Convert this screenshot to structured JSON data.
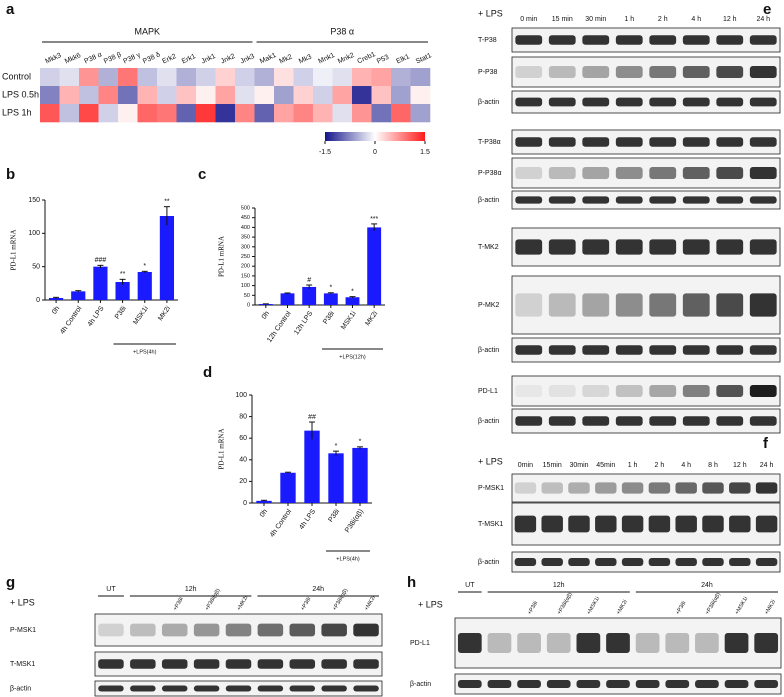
{
  "chart_data": [
    {
      "panel": "a",
      "type": "heatmap",
      "groups": [
        {
          "label": "MAPK",
          "columns": [
            "Mkk3",
            "Mkk6",
            "P38 α",
            "P38 β",
            "P38 γ",
            "P38 δ",
            "Erk2",
            "Erk1",
            "Jnk1",
            "Jnk2",
            "Jnk3"
          ]
        },
        {
          "label": "P38 α",
          "columns": [
            "Mak1",
            "Mk2",
            "Mk3",
            "Mnk1",
            "Mnk2",
            "Creb1",
            "P53",
            "Elk1",
            "Stat1"
          ]
        }
      ],
      "rows": [
        "Control",
        "LPS 0.5h",
        "LPS 1h"
      ],
      "values": [
        [
          -0.3,
          -0.2,
          0.7,
          -0.5,
          0.9,
          -0.4,
          -0.2,
          -0.5,
          -0.3,
          0.3,
          -0.3,
          -0.5,
          0.2,
          -0.3,
          -0.1,
          -0.2,
          0.5,
          0.6,
          -0.5,
          -0.6
        ],
        [
          -0.8,
          0.5,
          -0.4,
          0.8,
          -0.9,
          0.5,
          -0.3,
          0.4,
          0.1,
          0.6,
          -0.2,
          0.1,
          -0.6,
          0.3,
          -0.3,
          0.6,
          -1.3,
          0.4,
          -0.6,
          0.1
        ],
        [
          1.1,
          -0.4,
          1.2,
          -0.3,
          0.1,
          1.0,
          0.9,
          -1.0,
          1.3,
          -1.3,
          0.8,
          -1.0,
          0.6,
          0.8,
          0.5,
          -0.2,
          0.7,
          -0.9,
          1.0,
          -0.6
        ]
      ],
      "colorbar": {
        "lim": [
          -1.5,
          1.5
        ],
        "ticks": [
          -1.5,
          0,
          1.5
        ],
        "colors": [
          "#14148a",
          "#ffffff",
          "#ff1a1a"
        ]
      }
    },
    {
      "panel": "b",
      "type": "bar",
      "ylabel": "PD-L1  mRNA",
      "color": "#1a1aff",
      "categories": [
        "0h",
        "4h Control",
        "4h LPS",
        "P38i",
        "MSK1i",
        "MK2i"
      ],
      "values": [
        3,
        13,
        50,
        27,
        42,
        126
      ],
      "errors": [
        1,
        1,
        2,
        4,
        1,
        14
      ],
      "significance": [
        null,
        null,
        "###",
        "**",
        "*",
        "**"
      ],
      "bracket": {
        "label": "+LPS(4h)",
        "first": "P38i",
        "last": "MK2i"
      },
      "ylim": [
        0,
        150
      ],
      "yticks": [
        0,
        50,
        100,
        150
      ]
    },
    {
      "panel": "c",
      "type": "bar",
      "ylabel": "PD-L1  mRNA",
      "color": "#1a1aff",
      "categories": [
        "0h",
        "12h Control",
        "12h LPS",
        "P38i",
        "MSK1i",
        "MK2i"
      ],
      "values": [
        5,
        60,
        93,
        60,
        40,
        400
      ],
      "errors": [
        1,
        2,
        10,
        3,
        3,
        18
      ],
      "significance": [
        null,
        null,
        "#",
        "*",
        "*",
        "***"
      ],
      "bracket": {
        "label": "+LPS(12h)",
        "first": "P38i",
        "last": "MK2i"
      },
      "ylim": [
        0,
        500
      ],
      "yticks": [
        0,
        50,
        100,
        150,
        200,
        250,
        300,
        350,
        400,
        450,
        500
      ]
    },
    {
      "panel": "d",
      "type": "bar",
      "ylabel": "PD-L1  mRNA",
      "color": "#1a1aff",
      "categories": [
        "0h",
        "4h Control",
        "4h LPS",
        "P38i",
        "P38i(αβ)"
      ],
      "values": [
        2,
        28,
        67,
        46,
        51
      ],
      "errors": [
        0.5,
        0.5,
        8,
        2,
        1
      ],
      "significance": [
        null,
        null,
        "##",
        "*",
        "*"
      ],
      "bracket": {
        "label": "+LPS(4h)",
        "first": "P38i",
        "last": "P38i(αβ)"
      },
      "ylim": [
        0,
        100
      ],
      "yticks": [
        0,
        20,
        40,
        60,
        80,
        100
      ]
    }
  ],
  "blots": [
    {
      "panel": "e",
      "treatment": "+ LPS",
      "lanes": [
        "0 min",
        "15 min",
        "30 min",
        "1 h",
        "2 h",
        "4 h",
        "12 h",
        "24 h"
      ],
      "rows": [
        "T-P38",
        "P-P38",
        "β-actin",
        "T-P38α",
        "P-P38α",
        "β-actin",
        "T-MK2",
        "P-MK2",
        "β-actin",
        "PD-L1",
        "β-actin"
      ]
    },
    {
      "panel": "f",
      "treatment": "+ LPS",
      "lanes": [
        "0min",
        "15min",
        "30min",
        "45min",
        "1 h",
        "2 h",
        "4 h",
        "8 h",
        "12 h",
        "24 h"
      ],
      "rows": [
        "P-MSK1",
        "T-MSK1",
        "β-actin"
      ]
    },
    {
      "panel": "g",
      "treatment": "+ LPS",
      "groups": [
        {
          "label": "UT",
          "lanes": [
            null
          ]
        },
        {
          "label": "12h",
          "lanes": [
            null,
            "+P38i",
            "+P38i(αβ)",
            "+MK2i"
          ]
        },
        {
          "label": "24h",
          "lanes": [
            null,
            "+P38i",
            "+P38i(αβ)",
            "+MK2i"
          ]
        }
      ],
      "rows": [
        "P-MSK1",
        "T-MSK1",
        "β-actin"
      ]
    },
    {
      "panel": "h",
      "treatment": "+ LPS",
      "groups": [
        {
          "label": "UT",
          "lanes": [
            null
          ]
        },
        {
          "label": "12h",
          "lanes": [
            null,
            "+P38i",
            "+P38i(αβ)",
            "+MSK1i",
            "+MK2i"
          ]
        },
        {
          "label": "24h",
          "lanes": [
            null,
            "+P38i",
            "+P38i(αβ)",
            "+MSK1i",
            "+MK2i"
          ]
        }
      ],
      "rows": [
        "PD-L1",
        "β-actin"
      ]
    }
  ]
}
